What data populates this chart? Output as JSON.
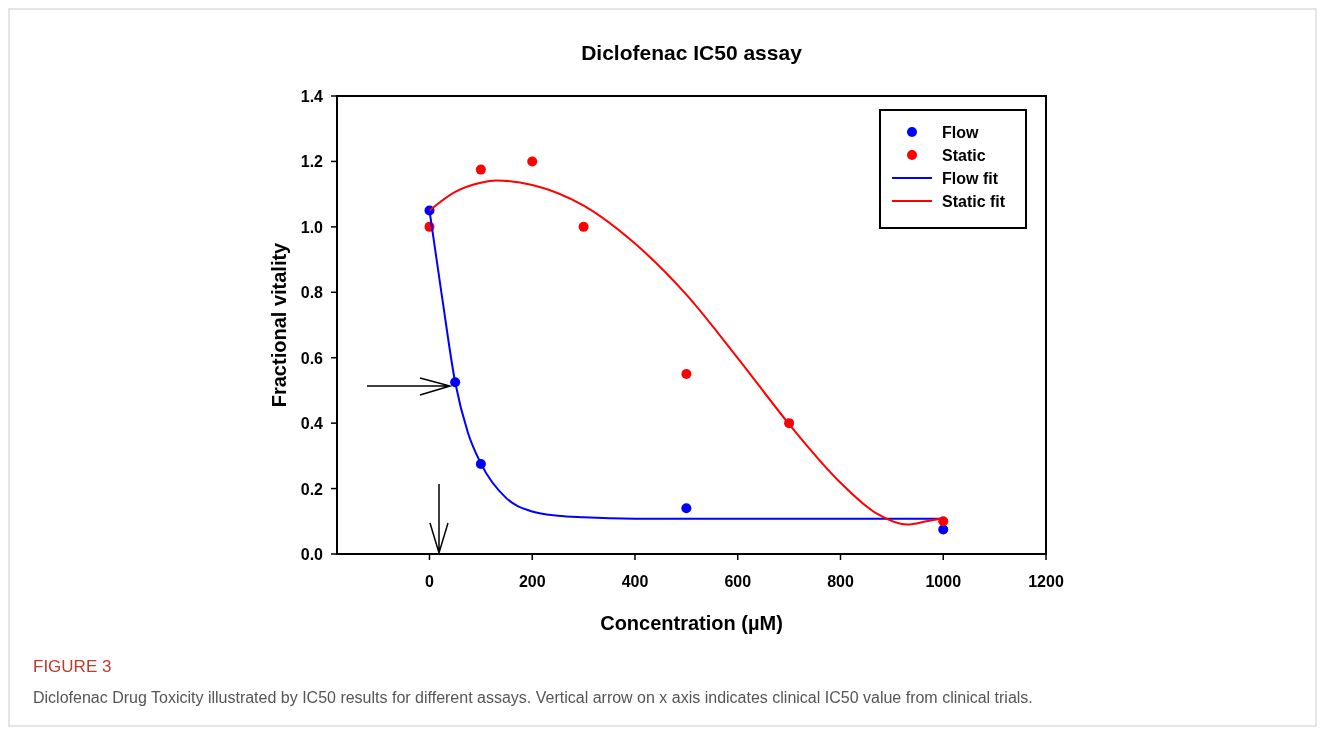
{
  "chart_data": {
    "type": "scatter",
    "title": "Diclofenac IC50 assay",
    "xlabel": "Concentration (µM)",
    "ylabel": "Fractional vitality",
    "annotations": [
      "FIGURE 3",
      "Diclofenac Drug Toxicity illustrated by IC50 results for different assays. Vertical arrow on x axis indicates clinical IC50 value from clinical trials."
    ],
    "series": [
      {
        "name": "Flow",
        "color": "#0000ff",
        "x": [
          0,
          50,
          100,
          500,
          1000
        ],
        "values": [
          1.05,
          0.525,
          0.275,
          0.14,
          0.075
        ]
      },
      {
        "name": "Static",
        "color": "#ff0000",
        "x": [
          0,
          100,
          200,
          300,
          500,
          700,
          1000
        ],
        "values": [
          1.0,
          1.175,
          1.2,
          1.0,
          0.55,
          0.4,
          0.1
        ]
      },
      {
        "name": "Flow fit",
        "type": "line",
        "marker": "none",
        "color": "#0000ff",
        "x": [
          0,
          25,
          50,
          75,
          100,
          150,
          200,
          250,
          300,
          400,
          600,
          800,
          1000
        ],
        "values": [
          1.05,
          0.78,
          0.525,
          0.37,
          0.277,
          0.17,
          0.13,
          0.117,
          0.112,
          0.108,
          0.108,
          0.108,
          0.108
        ]
      },
      {
        "name": "Static fit",
        "type": "line",
        "marker": "none",
        "color": "#ff0000",
        "x": [
          0,
          50,
          100,
          130,
          200,
          300,
          400,
          500,
          600,
          700,
          800,
          870,
          930,
          970,
          1000
        ],
        "values": [
          1.05,
          1.107,
          1.135,
          1.142,
          1.128,
          1.065,
          0.949,
          0.793,
          0.599,
          0.397,
          0.218,
          0.124,
          0.09,
          0.101,
          0.109
        ]
      }
    ],
    "xlim": [
      -180,
      1200
    ],
    "xticks": [
      0,
      200,
      400,
      600,
      800,
      1000,
      1200
    ],
    "ylim": [
      0,
      1.4
    ],
    "yticks": [
      {
        "value": 0,
        "label": "0.0"
      },
      {
        "value": 0.2,
        "label": "0.2"
      },
      {
        "value": 0.4,
        "label": "0.4"
      },
      {
        "value": 0.6,
        "label": "0.6"
      },
      {
        "value": 0.8,
        "label": "0.8"
      },
      {
        "value": 1.0,
        "label": "1.0"
      },
      {
        "value": 1.2,
        "label": "1.2"
      },
      {
        "value": 1.4,
        "label": "1.4"
      }
    ],
    "legend": "top right",
    "marker": "circle",
    "line_style": "solid"
  }
}
